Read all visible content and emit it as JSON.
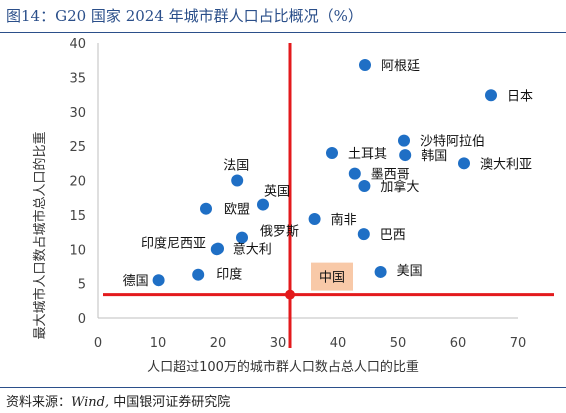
{
  "figure": {
    "title": "图14：G20 国家 2024 年城市群人口占比概况（%）",
    "source_prefix": "资料来源：",
    "source_italic": "Wind,",
    "source_rest": " 中国银河证券研究院"
  },
  "colors": {
    "point": "#1f6fc5",
    "crosshair": "#e31a1c",
    "highlight_fill": "#f8c9a8",
    "rule": "#2b4f8a"
  },
  "chart_data": {
    "type": "scatter",
    "xlabel": "人口超过100万的城市群人口数占总人口的比重",
    "ylabel": "最大城市人口数占城市总人口的比重",
    "xlim": [
      0,
      70
    ],
    "ylim": [
      0,
      40
    ],
    "xticks": [
      0,
      10,
      20,
      30,
      40,
      50,
      60,
      70
    ],
    "yticks": [
      0,
      5,
      10,
      15,
      20,
      25,
      30,
      35,
      40
    ],
    "grid": false,
    "points": [
      {
        "name": "阿根廷",
        "x": 44.5,
        "y": 36.8
      },
      {
        "name": "日本",
        "x": 65.5,
        "y": 32.4
      },
      {
        "name": "沙特阿拉伯",
        "x": 51.0,
        "y": 25.8
      },
      {
        "name": "土耳其",
        "x": 39.0,
        "y": 24.0
      },
      {
        "name": "韩国",
        "x": 51.2,
        "y": 23.7
      },
      {
        "name": "澳大利亚",
        "x": 61.0,
        "y": 22.5
      },
      {
        "name": "墨西哥",
        "x": 42.8,
        "y": 21.0
      },
      {
        "name": "加拿大",
        "x": 44.4,
        "y": 19.2
      },
      {
        "name": "法国",
        "x": 23.2,
        "y": 20.0
      },
      {
        "name": "英国",
        "x": 27.5,
        "y": 16.5
      },
      {
        "name": "欧盟",
        "x": 18.0,
        "y": 15.9
      },
      {
        "name": "南非",
        "x": 36.1,
        "y": 14.4
      },
      {
        "name": "巴西",
        "x": 44.3,
        "y": 12.2
      },
      {
        "name": "俄罗斯",
        "x": 24.0,
        "y": 11.7
      },
      {
        "name": "印度尼西亚",
        "x": 20.0,
        "y": 10.1
      },
      {
        "name": "意大利",
        "x": 19.8,
        "y": 10.0
      },
      {
        "name": "德国",
        "x": 10.1,
        "y": 5.5
      },
      {
        "name": "印度",
        "x": 16.7,
        "y": 6.3
      },
      {
        "name": "美国",
        "x": 47.1,
        "y": 6.7
      },
      {
        "name": "中国",
        "x": 32.0,
        "y": 3.4
      }
    ],
    "reference_lines": {
      "x": 32.0,
      "y": 3.4
    },
    "highlight_label": "中国"
  }
}
